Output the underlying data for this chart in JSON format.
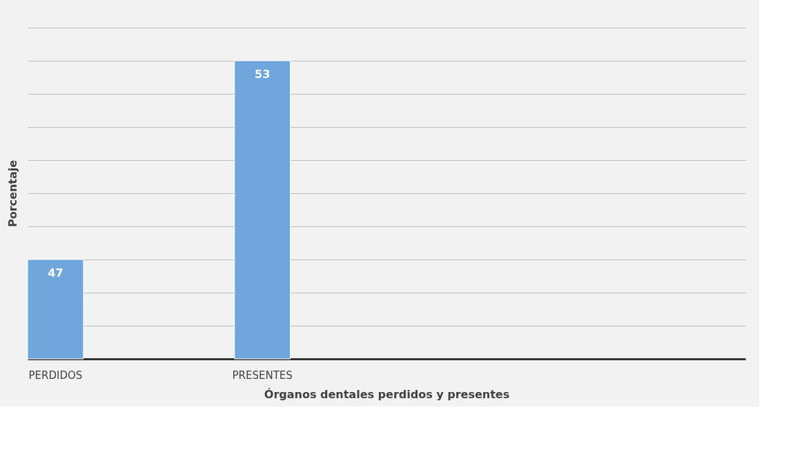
{
  "chart_data": {
    "type": "bar",
    "xlabel": "Órganos dentales perdidos y presentes",
    "ylabel": "Porcentaje",
    "categories": [
      "PERDIDOS",
      "PRESENTES",
      null,
      null
    ],
    "values": [
      47,
      53,
      null,
      null
    ],
    "color": "#6fa6db",
    "ylim": [
      44,
      54
    ],
    "yticks": [
      {
        "value": 44,
        "label": null
      },
      {
        "value": 45,
        "label": null
      },
      {
        "value": 46,
        "label": null
      },
      {
        "value": 47,
        "label": null
      },
      {
        "value": 48,
        "label": null
      },
      {
        "value": 49,
        "label": null
      },
      {
        "value": 50,
        "label": null
      },
      {
        "value": 51,
        "label": null
      },
      {
        "value": 52,
        "label": null
      },
      {
        "value": 53,
        "label": null
      },
      {
        "value": 54,
        "label": null
      }
    ],
    "grid": "y",
    "data_labels": true,
    "tick_labels": "x"
  }
}
